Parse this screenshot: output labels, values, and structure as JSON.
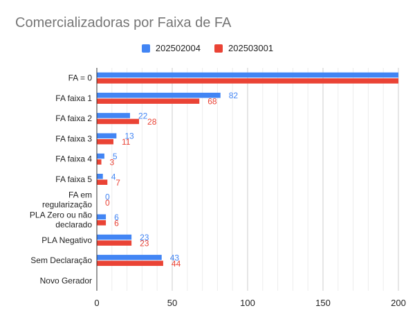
{
  "chart_data": {
    "type": "bar",
    "orientation": "horizontal",
    "title": "Comercializadoras por Faixa de FA",
    "categories": [
      [
        "FA = 0"
      ],
      [
        "FA faixa 1"
      ],
      [
        "FA faixa 2"
      ],
      [
        "FA faixa 3"
      ],
      [
        "FA faixa 4"
      ],
      [
        "FA faixa 5"
      ],
      [
        "FA em",
        "regularização"
      ],
      [
        "PLA Zero ou não",
        "declarado"
      ],
      [
        "PLA Negativo"
      ],
      [
        "Sem Declaração"
      ],
      [
        "Novo Gerador"
      ]
    ],
    "series": [
      {
        "name": "202502004",
        "color": "#4285F4",
        "values": [
          200,
          82,
          22,
          13,
          5,
          4,
          0,
          6,
          23,
          43,
          null
        ]
      },
      {
        "name": "202503001",
        "color": "#EA4335",
        "values": [
          200,
          68,
          28,
          11,
          3,
          7,
          0,
          6,
          23,
          44,
          null
        ]
      }
    ],
    "xlim": [
      0,
      200
    ],
    "xticks": [
      0,
      50,
      100,
      150,
      200
    ],
    "xlabel": "",
    "ylabel": "",
    "grid": true,
    "legend_position": "top-center",
    "data_labels_shown_for": [
      1,
      2,
      3,
      4,
      5,
      6,
      7,
      8,
      9
    ]
  }
}
